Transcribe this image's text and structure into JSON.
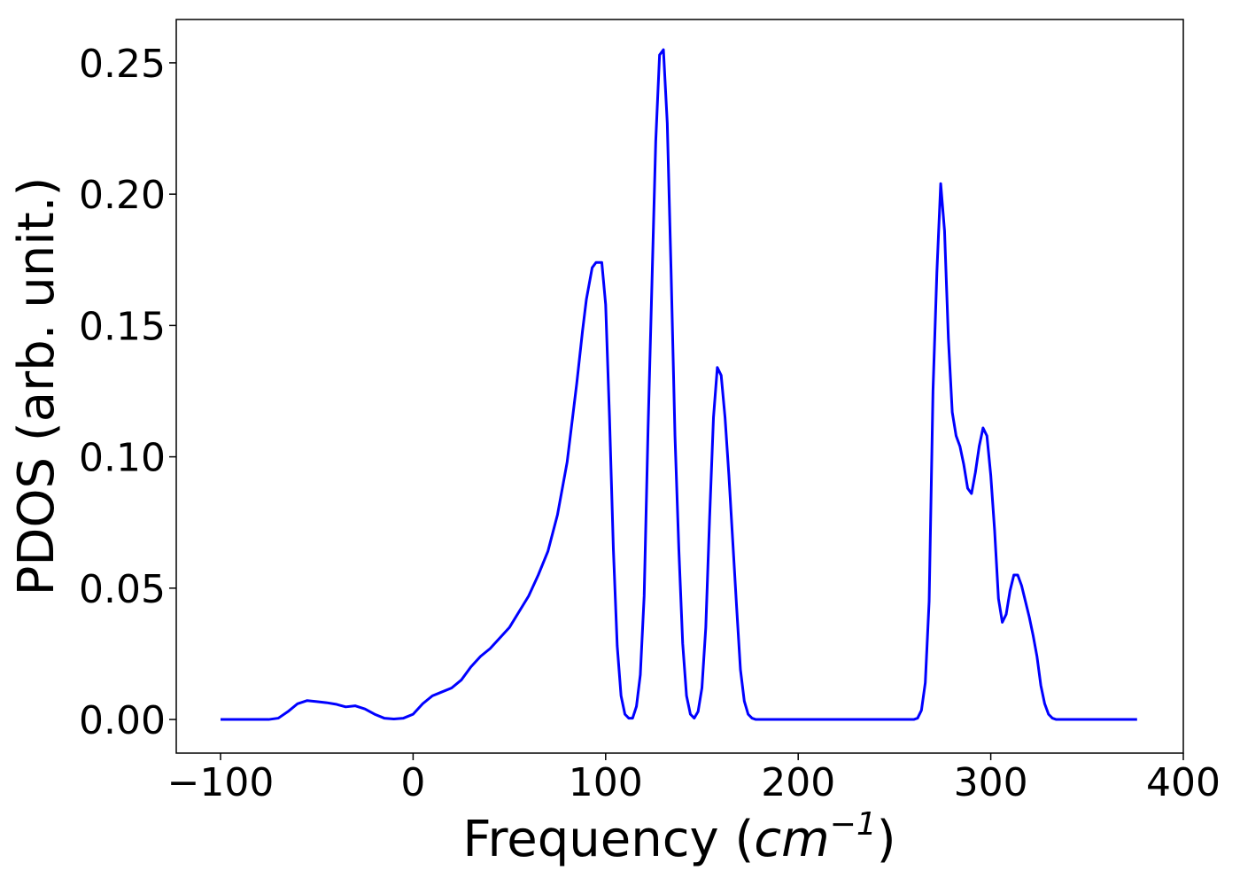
{
  "chart_data": {
    "type": "line",
    "title": "",
    "xlabel_prefix": "Frequency (",
    "xlabel_math_base": "cm",
    "xlabel_math_exp": "−1",
    "xlabel_suffix": ")",
    "ylabel": "PDOS (arb. unit.)",
    "xlim": [
      -123,
      400
    ],
    "ylim": [
      -0.0128,
      0.2665
    ],
    "xticks": [
      -100,
      0,
      100,
      200,
      300,
      400
    ],
    "xtick_labels": [
      "−100",
      "0",
      "100",
      "200",
      "300",
      "400"
    ],
    "yticks": [
      0.0,
      0.05,
      0.1,
      0.15,
      0.2,
      0.25
    ],
    "ytick_labels": [
      "0.00",
      "0.05",
      "0.10",
      "0.15",
      "0.20",
      "0.25"
    ],
    "grid": false,
    "legend": "none",
    "series": [
      {
        "color": "#0000ff",
        "x": [
          -100,
          -75,
          -70,
          -65,
          -60,
          -55,
          -50,
          -45,
          -40,
          -35,
          -30,
          -25,
          -20,
          -15,
          -10,
          -5,
          0,
          5,
          10,
          15,
          20,
          25,
          30,
          35,
          40,
          45,
          50,
          55,
          60,
          65,
          70,
          75,
          80,
          85,
          88,
          90,
          93,
          95,
          98,
          100,
          102,
          104,
          106,
          108,
          110,
          112,
          114,
          116,
          118,
          120,
          122,
          124,
          126,
          128,
          130,
          132,
          134,
          136,
          138,
          140,
          142,
          144,
          146,
          148,
          150,
          152,
          154,
          156,
          158,
          160,
          162,
          164,
          166,
          168,
          170,
          172,
          174,
          176,
          178,
          180,
          182,
          184,
          186,
          188,
          190,
          195,
          200,
          220,
          240,
          260,
          262,
          264,
          266,
          268,
          270,
          272,
          274,
          276,
          278,
          280,
          282,
          284,
          286,
          288,
          290,
          292,
          294,
          296,
          298,
          300,
          302,
          304,
          306,
          308,
          310,
          312,
          314,
          316,
          318,
          320,
          322,
          324,
          326,
          328,
          330,
          332,
          334,
          336,
          338,
          340,
          342,
          344,
          346,
          350,
          360,
          376
        ],
        "y": [
          0.0,
          0.0,
          0.0005,
          0.003,
          0.006,
          0.0072,
          0.0068,
          0.0064,
          0.0058,
          0.0048,
          0.0052,
          0.004,
          0.002,
          0.0005,
          0.0002,
          0.0005,
          0.002,
          0.006,
          0.009,
          0.0105,
          0.012,
          0.015,
          0.02,
          0.024,
          0.027,
          0.031,
          0.035,
          0.041,
          0.047,
          0.055,
          0.064,
          0.078,
          0.098,
          0.128,
          0.148,
          0.16,
          0.172,
          0.174,
          0.174,
          0.158,
          0.115,
          0.065,
          0.028,
          0.009,
          0.002,
          0.0005,
          0.0005,
          0.005,
          0.017,
          0.047,
          0.11,
          0.165,
          0.22,
          0.253,
          0.255,
          0.227,
          0.17,
          0.108,
          0.065,
          0.029,
          0.009,
          0.002,
          0.0005,
          0.003,
          0.012,
          0.035,
          0.077,
          0.115,
          0.134,
          0.131,
          0.115,
          0.093,
          0.068,
          0.043,
          0.019,
          0.007,
          0.002,
          0.0005,
          0.0,
          0.0,
          0.0,
          0.0,
          0.0,
          0.0,
          0.0,
          0.0,
          0.0,
          0.0,
          0.0,
          0.0,
          0.0005,
          0.0035,
          0.014,
          0.045,
          0.125,
          0.17,
          0.204,
          0.186,
          0.145,
          0.117,
          0.108,
          0.104,
          0.097,
          0.088,
          0.086,
          0.094,
          0.104,
          0.111,
          0.108,
          0.093,
          0.072,
          0.046,
          0.037,
          0.04,
          0.049,
          0.055,
          0.055,
          0.051,
          0.045,
          0.039,
          0.032,
          0.024,
          0.013,
          0.006,
          0.002,
          0.0005,
          0.0,
          0.0,
          0.0,
          0.0,
          0.0,
          0.0,
          0.0,
          0.0,
          0.0,
          0.0
        ]
      }
    ]
  }
}
